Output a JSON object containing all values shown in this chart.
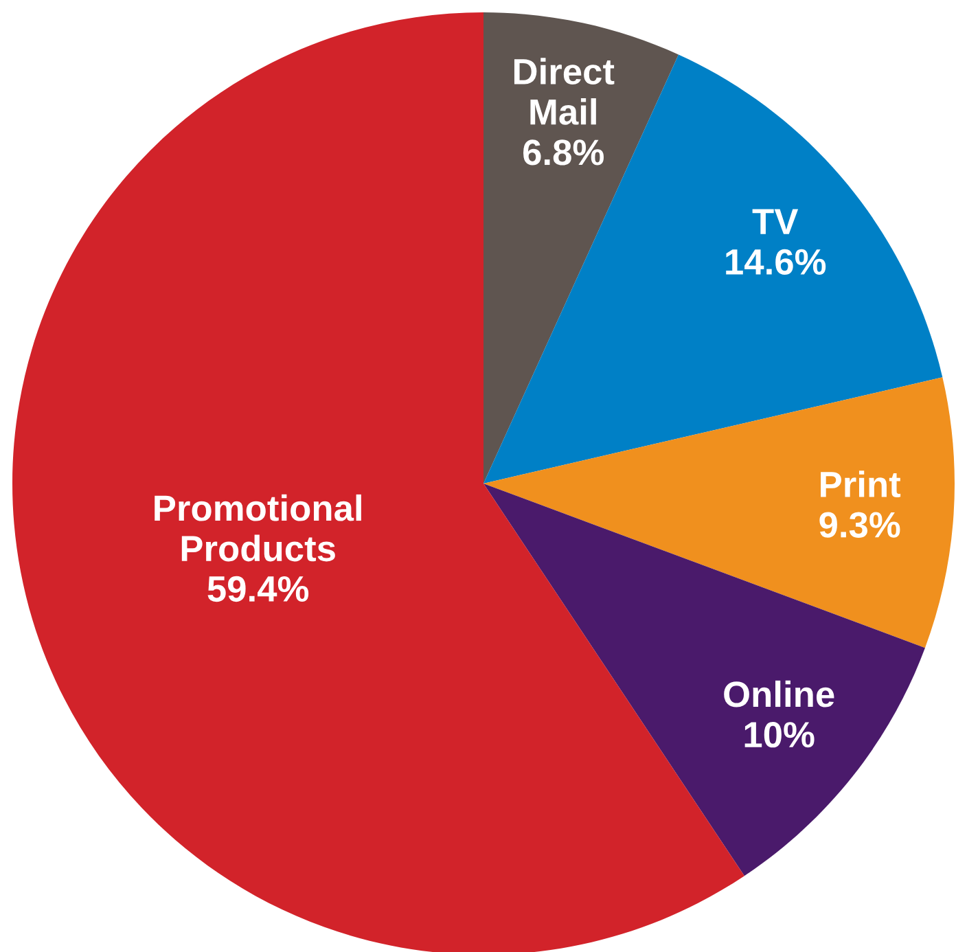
{
  "chart_data": {
    "type": "pie",
    "categories": [
      "Direct Mail",
      "TV",
      "Print",
      "Online",
      "Promotional Products"
    ],
    "values": [
      6.8,
      14.6,
      9.3,
      10,
      59.4
    ],
    "colors": [
      "#5f5550",
      "#0080c6",
      "#f0901e",
      "#4a1a6b",
      "#d2232a"
    ],
    "value_labels": [
      "6.8%",
      "14.6%",
      "9.3%",
      "10%",
      "59.4%"
    ]
  }
}
